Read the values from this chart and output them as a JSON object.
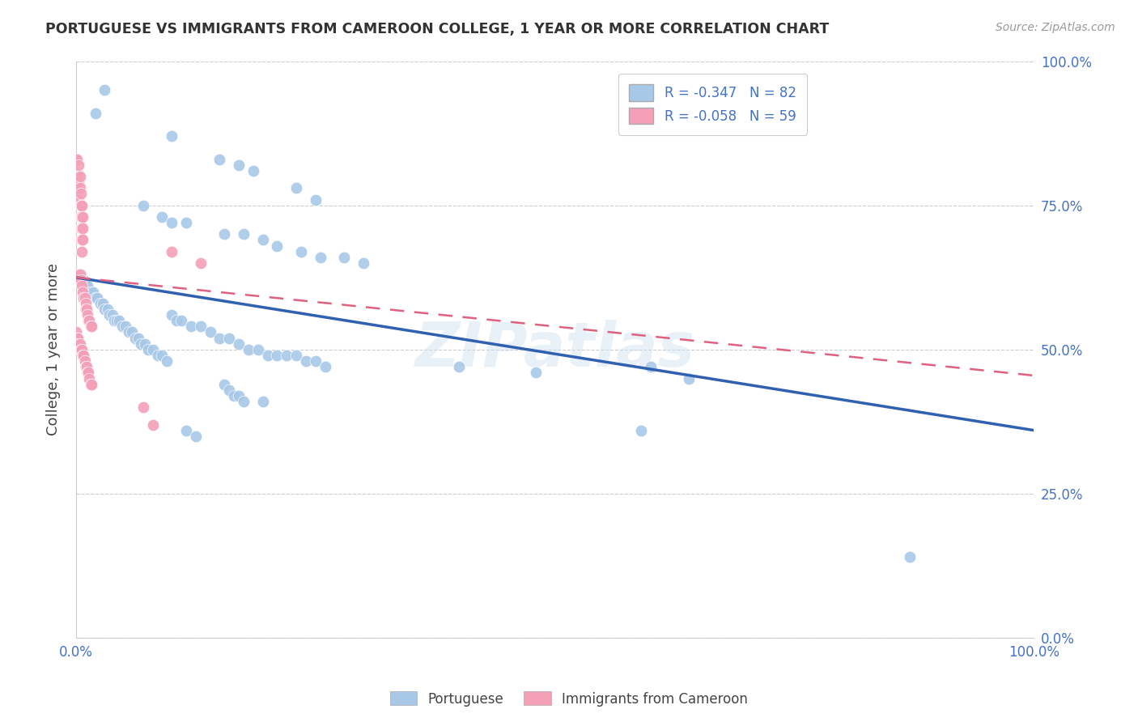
{
  "title": "PORTUGUESE VS IMMIGRANTS FROM CAMEROON COLLEGE, 1 YEAR OR MORE CORRELATION CHART",
  "source": "Source: ZipAtlas.com",
  "ylabel": "College, 1 year or more",
  "xlim": [
    0,
    1
  ],
  "ylim": [
    0,
    1
  ],
  "legend_r1": "-0.347",
  "legend_n1": "82",
  "legend_r2": "-0.058",
  "legend_n2": "59",
  "color_blue": "#a8c8e8",
  "color_pink": "#f4a0b8",
  "trendline_blue": "#3060b0",
  "trendline_pink": "#e06080",
  "watermark": "ZIPatlas",
  "blue_points": [
    [
      0.02,
      0.91
    ],
    [
      0.03,
      0.95
    ],
    [
      0.1,
      0.87
    ],
    [
      0.15,
      0.83
    ],
    [
      0.17,
      0.82
    ],
    [
      0.185,
      0.81
    ],
    [
      0.23,
      0.78
    ],
    [
      0.25,
      0.76
    ],
    [
      0.07,
      0.75
    ],
    [
      0.09,
      0.73
    ],
    [
      0.1,
      0.72
    ],
    [
      0.115,
      0.72
    ],
    [
      0.155,
      0.7
    ],
    [
      0.175,
      0.7
    ],
    [
      0.195,
      0.69
    ],
    [
      0.21,
      0.68
    ],
    [
      0.235,
      0.67
    ],
    [
      0.255,
      0.66
    ],
    [
      0.28,
      0.66
    ],
    [
      0.3,
      0.65
    ],
    [
      0.005,
      0.63
    ],
    [
      0.008,
      0.62
    ],
    [
      0.01,
      0.61
    ],
    [
      0.012,
      0.61
    ],
    [
      0.015,
      0.6
    ],
    [
      0.018,
      0.6
    ],
    [
      0.02,
      0.59
    ],
    [
      0.022,
      0.59
    ],
    [
      0.025,
      0.58
    ],
    [
      0.028,
      0.58
    ],
    [
      0.03,
      0.57
    ],
    [
      0.033,
      0.57
    ],
    [
      0.035,
      0.56
    ],
    [
      0.038,
      0.56
    ],
    [
      0.04,
      0.55
    ],
    [
      0.042,
      0.55
    ],
    [
      0.045,
      0.55
    ],
    [
      0.048,
      0.54
    ],
    [
      0.052,
      0.54
    ],
    [
      0.055,
      0.53
    ],
    [
      0.058,
      0.53
    ],
    [
      0.062,
      0.52
    ],
    [
      0.065,
      0.52
    ],
    [
      0.068,
      0.51
    ],
    [
      0.072,
      0.51
    ],
    [
      0.075,
      0.5
    ],
    [
      0.08,
      0.5
    ],
    [
      0.085,
      0.49
    ],
    [
      0.09,
      0.49
    ],
    [
      0.095,
      0.48
    ],
    [
      0.1,
      0.56
    ],
    [
      0.105,
      0.55
    ],
    [
      0.11,
      0.55
    ],
    [
      0.12,
      0.54
    ],
    [
      0.13,
      0.54
    ],
    [
      0.14,
      0.53
    ],
    [
      0.15,
      0.52
    ],
    [
      0.16,
      0.52
    ],
    [
      0.17,
      0.51
    ],
    [
      0.18,
      0.5
    ],
    [
      0.19,
      0.5
    ],
    [
      0.2,
      0.49
    ],
    [
      0.21,
      0.49
    ],
    [
      0.22,
      0.49
    ],
    [
      0.23,
      0.49
    ],
    [
      0.24,
      0.48
    ],
    [
      0.25,
      0.48
    ],
    [
      0.26,
      0.47
    ],
    [
      0.155,
      0.44
    ],
    [
      0.16,
      0.43
    ],
    [
      0.165,
      0.42
    ],
    [
      0.17,
      0.42
    ],
    [
      0.175,
      0.41
    ],
    [
      0.195,
      0.41
    ],
    [
      0.115,
      0.36
    ],
    [
      0.125,
      0.35
    ],
    [
      0.4,
      0.47
    ],
    [
      0.48,
      0.46
    ],
    [
      0.6,
      0.47
    ],
    [
      0.64,
      0.45
    ],
    [
      0.59,
      0.36
    ],
    [
      0.87,
      0.14
    ]
  ],
  "pink_points": [
    [
      0.0,
      0.83
    ],
    [
      0.001,
      0.83
    ],
    [
      0.002,
      0.8
    ],
    [
      0.002,
      0.78
    ],
    [
      0.003,
      0.82
    ],
    [
      0.003,
      0.79
    ],
    [
      0.003,
      0.76
    ],
    [
      0.004,
      0.8
    ],
    [
      0.004,
      0.78
    ],
    [
      0.005,
      0.77
    ],
    [
      0.005,
      0.75
    ],
    [
      0.005,
      0.73
    ],
    [
      0.005,
      0.71
    ],
    [
      0.005,
      0.69
    ],
    [
      0.006,
      0.75
    ],
    [
      0.006,
      0.73
    ],
    [
      0.006,
      0.71
    ],
    [
      0.006,
      0.69
    ],
    [
      0.006,
      0.67
    ],
    [
      0.007,
      0.73
    ],
    [
      0.007,
      0.71
    ],
    [
      0.007,
      0.69
    ],
    [
      0.002,
      0.63
    ],
    [
      0.003,
      0.62
    ],
    [
      0.004,
      0.63
    ],
    [
      0.005,
      0.62
    ],
    [
      0.006,
      0.61
    ],
    [
      0.007,
      0.6
    ],
    [
      0.008,
      0.59
    ],
    [
      0.009,
      0.59
    ],
    [
      0.01,
      0.58
    ],
    [
      0.01,
      0.57
    ],
    [
      0.011,
      0.57
    ],
    [
      0.012,
      0.56
    ],
    [
      0.013,
      0.55
    ],
    [
      0.014,
      0.55
    ],
    [
      0.015,
      0.54
    ],
    [
      0.016,
      0.54
    ],
    [
      0.0,
      0.53
    ],
    [
      0.001,
      0.52
    ],
    [
      0.002,
      0.52
    ],
    [
      0.003,
      0.51
    ],
    [
      0.004,
      0.51
    ],
    [
      0.005,
      0.5
    ],
    [
      0.006,
      0.5
    ],
    [
      0.007,
      0.49
    ],
    [
      0.008,
      0.49
    ],
    [
      0.009,
      0.48
    ],
    [
      0.01,
      0.47
    ],
    [
      0.011,
      0.47
    ],
    [
      0.012,
      0.46
    ],
    [
      0.013,
      0.46
    ],
    [
      0.014,
      0.45
    ],
    [
      0.015,
      0.44
    ],
    [
      0.016,
      0.44
    ],
    [
      0.07,
      0.4
    ],
    [
      0.1,
      0.67
    ],
    [
      0.13,
      0.65
    ],
    [
      0.08,
      0.37
    ]
  ],
  "blue_trend": [
    0.0,
    1.0,
    0.625,
    0.36
  ],
  "pink_trend": [
    0.0,
    1.0,
    0.625,
    0.455
  ]
}
